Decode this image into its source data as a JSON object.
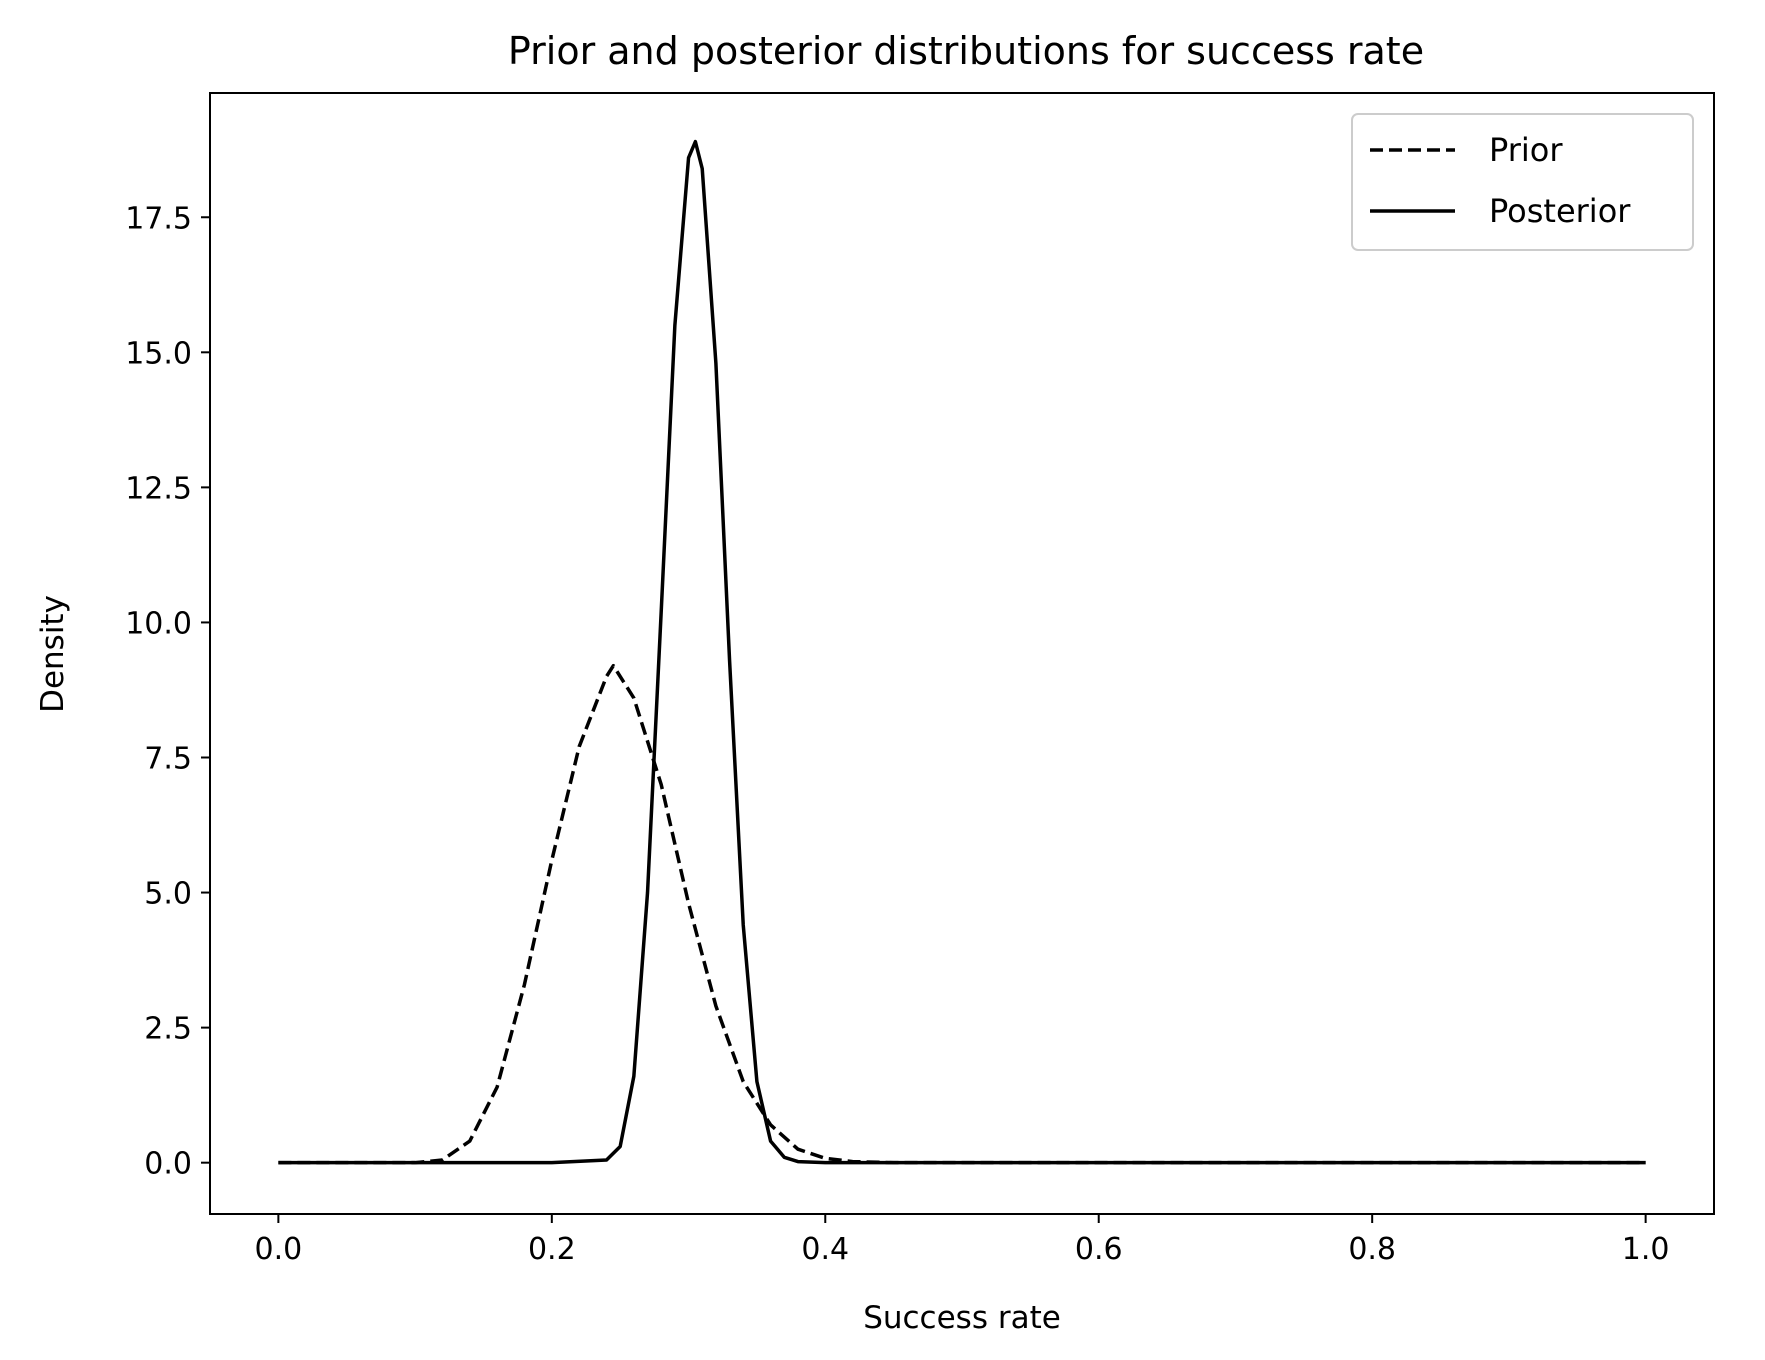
{
  "chart_data": {
    "type": "line",
    "title": "Prior and posterior distributions for success rate",
    "xlabel": "Success rate",
    "ylabel": "Density",
    "xlim": [
      -0.05,
      1.05
    ],
    "ylim": [
      -0.95,
      19.8
    ],
    "xticks": [
      0.0,
      0.2,
      0.4,
      0.6,
      0.8,
      1.0
    ],
    "xtick_labels": [
      "0.0",
      "0.2",
      "0.4",
      "0.6",
      "0.8",
      "1.0"
    ],
    "yticks": [
      0.0,
      2.5,
      5.0,
      7.5,
      10.0,
      12.5,
      15.0,
      17.5
    ],
    "ytick_labels": [
      "0.0",
      "2.5",
      "5.0",
      "7.5",
      "10.0",
      "12.5",
      "15.0",
      "17.5"
    ],
    "grid": false,
    "legend_position": "top-right",
    "series": [
      {
        "name": "Prior",
        "line_style": "dashed",
        "color": "#000000",
        "x": [
          0.0,
          0.05,
          0.1,
          0.12,
          0.14,
          0.16,
          0.18,
          0.2,
          0.22,
          0.24,
          0.245,
          0.26,
          0.28,
          0.3,
          0.32,
          0.34,
          0.36,
          0.38,
          0.4,
          0.42,
          0.45,
          0.5,
          0.6,
          0.8,
          1.0
        ],
        "values": [
          0.0,
          0.0,
          0.0,
          0.05,
          0.4,
          1.4,
          3.3,
          5.6,
          7.7,
          9.0,
          9.2,
          8.6,
          7.0,
          4.8,
          2.9,
          1.5,
          0.7,
          0.25,
          0.08,
          0.02,
          0.0,
          0.0,
          0.0,
          0.0,
          0.0
        ]
      },
      {
        "name": "Posterior",
        "line_style": "solid",
        "color": "#000000",
        "x": [
          0.0,
          0.1,
          0.2,
          0.24,
          0.25,
          0.26,
          0.27,
          0.28,
          0.29,
          0.3,
          0.305,
          0.31,
          0.32,
          0.33,
          0.34,
          0.35,
          0.36,
          0.37,
          0.38,
          0.4,
          0.5,
          0.7,
          1.0
        ],
        "values": [
          0.0,
          0.0,
          0.0,
          0.05,
          0.3,
          1.6,
          5.0,
          10.2,
          15.5,
          18.6,
          18.9,
          18.4,
          14.8,
          9.3,
          4.4,
          1.5,
          0.4,
          0.1,
          0.02,
          0.0,
          0.0,
          0.0,
          0.0
        ]
      }
    ]
  }
}
